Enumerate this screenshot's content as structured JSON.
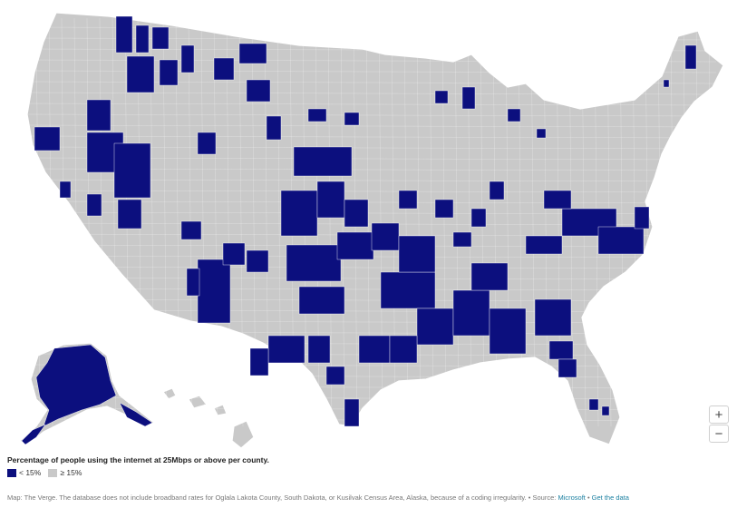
{
  "colors": {
    "low": "#0c0f7e",
    "high": "#c9c9c9",
    "link": "#1a7fa0"
  },
  "zoom": {
    "in_label": "+",
    "out_label": "−"
  },
  "legend": {
    "title": "Percentage of people using the internet at 25Mbps or above per county.",
    "items": [
      {
        "label": "< 15%",
        "color": "#0c0f7e"
      },
      {
        "label": "≥ 15%",
        "color": "#c9c9c9"
      }
    ]
  },
  "footer": {
    "text": "Map: The Verge. The database does not include broadband rates for Oglala Lakota County, South Dakota, or Kusilvak Census Area, Alaska, because of a coding irregularity. • Source: ",
    "source_link": "Microsoft",
    "separator": " • ",
    "data_link": "Get the data"
  }
}
